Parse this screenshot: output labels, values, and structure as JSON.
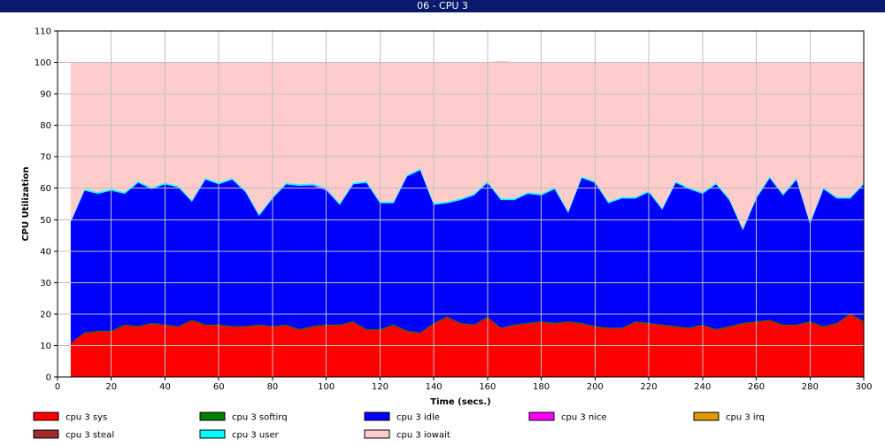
{
  "window": {
    "title": "06 - CPU 3"
  },
  "chart_data": {
    "type": "area",
    "stacked": true,
    "title": "06 - CPU 3",
    "xlabel": "Time (secs.)",
    "ylabel": "CPU Utilization",
    "xlim": [
      0,
      300
    ],
    "ylim": [
      0,
      110
    ],
    "xticks": [
      0,
      20,
      40,
      60,
      80,
      100,
      120,
      140,
      160,
      180,
      200,
      220,
      240,
      260,
      280,
      300
    ],
    "yticks": [
      0,
      10,
      20,
      30,
      40,
      50,
      60,
      70,
      80,
      90,
      100,
      110
    ],
    "grid": true,
    "legend_position": "bottom",
    "x": [
      5,
      10,
      15,
      20,
      25,
      30,
      35,
      40,
      45,
      50,
      55,
      60,
      65,
      70,
      75,
      80,
      85,
      90,
      95,
      100,
      105,
      110,
      115,
      120,
      125,
      130,
      135,
      140,
      145,
      150,
      155,
      160,
      165,
      170,
      175,
      180,
      185,
      190,
      195,
      200,
      205,
      210,
      215,
      220,
      225,
      230,
      235,
      240,
      245,
      250,
      255,
      260,
      265,
      270,
      275,
      280,
      285,
      290,
      295,
      300
    ],
    "series": [
      {
        "name": "cpu 3 sys",
        "color": "#ff0000",
        "values": [
          11,
          14,
          14.5,
          14.5,
          16.5,
          16,
          17,
          16.5,
          16,
          18,
          16.5,
          16.5,
          16,
          16,
          16.5,
          16,
          16.5,
          15,
          16,
          16.5,
          16.5,
          17.5,
          15,
          15,
          16.5,
          14.5,
          14,
          17,
          19,
          17,
          16.5,
          19,
          15.5,
          16.5,
          17,
          17.5,
          17,
          17.5,
          17,
          16,
          15.5,
          15.5,
          17.5,
          17,
          16.5,
          16,
          15.5,
          16.5,
          15,
          16,
          17,
          17.5,
          18,
          16.5,
          16.5,
          17.5,
          16,
          17,
          20,
          17.5
        ]
      },
      {
        "name": "cpu 3 softirq",
        "color": "#008000",
        "values": [
          0,
          0.3,
          0.3,
          0.3,
          0.3,
          0.3,
          0.3,
          0.3,
          0.3,
          0.3,
          0.3,
          0.3,
          0.3,
          0.3,
          0.3,
          0.3,
          0.3,
          0.3,
          0.3,
          0.3,
          0.3,
          0.3,
          0.3,
          0.3,
          0.3,
          0.3,
          0.3,
          0.3,
          0.3,
          0.3,
          0.3,
          0.3,
          0.3,
          0.3,
          0.3,
          0.3,
          0.3,
          0.3,
          0.3,
          0.3,
          0.3,
          0.3,
          0.3,
          0.3,
          0.3,
          0.3,
          0.3,
          0.3,
          0.3,
          0.3,
          0.3,
          0.3,
          0.3,
          0.3,
          0.3,
          0.3,
          0.3,
          0.3,
          0.3,
          0.3
        ]
      },
      {
        "name": "cpu 3 idle",
        "color": "#0000ff",
        "values": [
          38.5,
          45,
          43.5,
          44.5,
          41.5,
          45.5,
          42.5,
          44.5,
          44,
          37.5,
          46,
          44.5,
          46.5,
          42.5,
          34.5,
          40.5,
          44.5,
          45.5,
          44.5,
          42.5,
          38,
          43.5,
          46.5,
          40,
          38.5,
          49,
          51.5,
          37.5,
          36,
          39,
          41,
          42.5,
          40.5,
          39.5,
          41,
          40,
          42.5,
          34.5,
          46,
          45.5,
          39.5,
          41,
          39,
          41.5,
          36.5,
          45.5,
          44,
          41.5,
          46,
          40,
          29.5,
          39,
          45,
          41,
          46,
          31,
          43.5,
          39.5,
          36.5,
          43.5
        ]
      },
      {
        "name": "cpu 3 nice",
        "color": "#ff00ff",
        "values": [
          0,
          0,
          0,
          0,
          0,
          0,
          0,
          0,
          0,
          0,
          0,
          0,
          0,
          0,
          0,
          0,
          0,
          0,
          0.3,
          0.3,
          0,
          0,
          0,
          0,
          0,
          0,
          0,
          0,
          0,
          0,
          0,
          0,
          0,
          0,
          0,
          0,
          0,
          0,
          0,
          0,
          0,
          0,
          0,
          0,
          0,
          0,
          0,
          0,
          0,
          0,
          0,
          0,
          0,
          0,
          0,
          0,
          0,
          0,
          0,
          0
        ]
      },
      {
        "name": "cpu 3 irq",
        "color": "#e09a00",
        "values": [
          0,
          0,
          0,
          0,
          0,
          0,
          0,
          0,
          0,
          0,
          0,
          0,
          0,
          0,
          0,
          0,
          0,
          0,
          0,
          0,
          0,
          0,
          0,
          0,
          0,
          0,
          0,
          0,
          0,
          0,
          0,
          0,
          0,
          0,
          0,
          0,
          0,
          0,
          0,
          0,
          0,
          0,
          0,
          0,
          0,
          0,
          0,
          0,
          0,
          0,
          0,
          0,
          0,
          0,
          0,
          0,
          0,
          0,
          0,
          0
        ]
      },
      {
        "name": "cpu 3 steal",
        "color": "#a52a2a",
        "values": [
          0,
          0,
          0,
          0,
          0,
          0,
          0,
          0,
          0,
          0,
          0,
          0,
          0,
          0,
          0,
          0,
          0,
          0,
          0,
          0,
          0,
          0,
          0,
          0,
          0,
          0,
          0,
          0,
          0,
          0,
          0,
          0,
          0,
          0,
          0,
          0,
          0,
          0,
          0,
          0,
          0,
          0,
          0,
          0,
          0,
          0,
          0,
          0,
          0,
          0,
          0,
          0,
          0,
          0,
          0,
          0,
          0,
          0,
          0,
          0
        ]
      },
      {
        "name": "cpu 3 user",
        "color": "#00ffff",
        "values": [
          0.3,
          0.5,
          0.5,
          0.5,
          0.5,
          0.5,
          0.5,
          0.5,
          0.5,
          0.5,
          0.5,
          0.5,
          0.5,
          0.5,
          0.5,
          0.5,
          0.5,
          0.5,
          0.5,
          0.5,
          0.5,
          0.5,
          0.5,
          0.5,
          0.5,
          0.5,
          0.5,
          0.5,
          0.5,
          0.5,
          0.5,
          0.5,
          0.5,
          0.5,
          0.5,
          0.5,
          0.5,
          0.5,
          0.5,
          0.5,
          0.5,
          0.5,
          0.5,
          0.5,
          0.5,
          0.5,
          0.5,
          0.5,
          0.5,
          0.5,
          0.5,
          0.5,
          0.5,
          0.5,
          0.5,
          0.5,
          0.5,
          0.5,
          0.5,
          0.5
        ]
      },
      {
        "name": "cpu 3 iowait",
        "color": "#ffcccc",
        "values": [
          50.2,
          40.2,
          41.2,
          40.2,
          41.2,
          37.7,
          39.7,
          38.2,
          39.2,
          43.7,
          36.7,
          38.2,
          36.7,
          40.7,
          48.2,
          42.7,
          38.2,
          38.7,
          38.4,
          39.9,
          44.7,
          38.2,
          37.7,
          44.2,
          44.2,
          35.7,
          33.7,
          44.7,
          44.2,
          43.2,
          41.7,
          37.7,
          43.7,
          43.2,
          41.2,
          41.7,
          39.7,
          47.2,
          36.2,
          37.7,
          44.2,
          42.7,
          42.7,
          40.7,
          46.2,
          37.7,
          39.7,
          41.2,
          38.2,
          43.2,
          52.7,
          42.7,
          36.2,
          41.7,
          36.7,
          50.7,
          39.7,
          42.7,
          42.7,
          38.2
        ]
      }
    ]
  }
}
